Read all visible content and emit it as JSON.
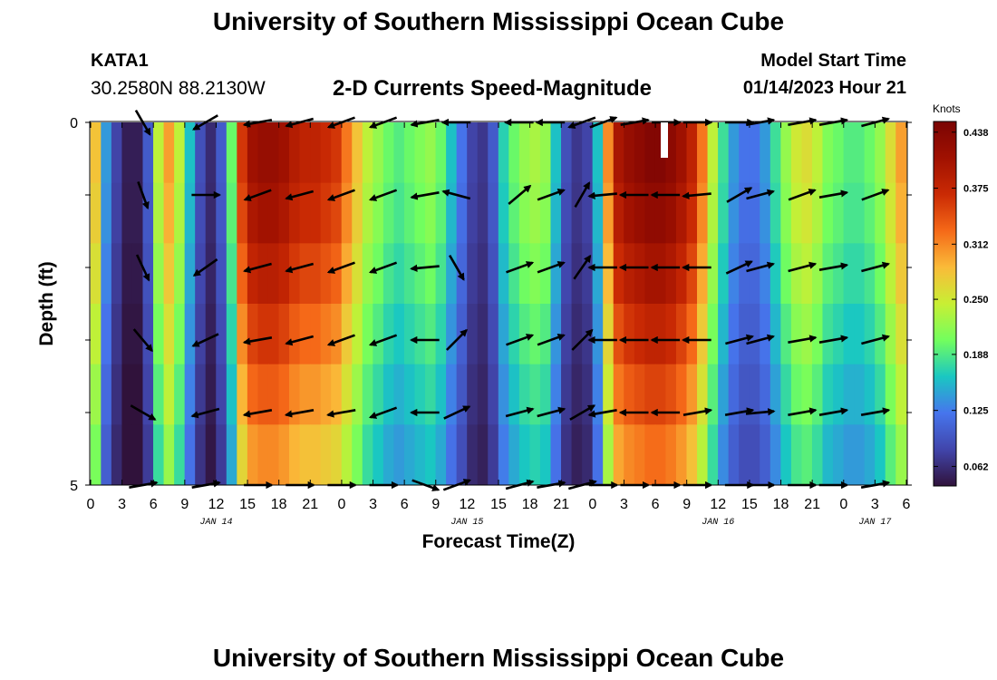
{
  "header": {
    "title": "University of Southern Mississippi Ocean Cube",
    "station": "KATA1",
    "coords": "30.2580N  88.2130W",
    "subtitle": "2-D Currents Speed-Magnitude",
    "model_start_label": "Model Start Time",
    "model_start_value": "01/14/2023 Hour 21"
  },
  "footer": {
    "title": "University of Southern Mississippi Ocean Cube"
  },
  "chart_data": {
    "type": "heatmap",
    "title": "2-D Currents Speed-Magnitude",
    "xlabel": "Forecast Time(Z)",
    "ylabel": "Depth (ft)",
    "colorbar_label": "Knots",
    "colorbar_ticks": [
      "0.438",
      "0.375",
      "0.312",
      "0.250",
      "0.188",
      "0.125",
      "0.062"
    ],
    "colorbar_range": [
      0.04,
      0.45
    ],
    "x_tick_labels": [
      "0",
      "3",
      "6",
      "9",
      "12",
      "15",
      "18",
      "21",
      "0",
      "3",
      "6",
      "9",
      "12",
      "15",
      "18",
      "21",
      "0",
      "3",
      "6",
      "9",
      "12",
      "15",
      "18",
      "21",
      "0",
      "3",
      "6"
    ],
    "date_labels": [
      {
        "text": "JAN 14",
        "hour": 12
      },
      {
        "text": "JAN 15",
        "hour": 36
      },
      {
        "text": "JAN 16",
        "hour": 60
      },
      {
        "text": "JAN 17",
        "hour": 75
      }
    ],
    "y_tick_labels": [
      {
        "text": "0",
        "depth": 0
      },
      {
        "text": "5",
        "depth": 5
      }
    ],
    "ylim": [
      0,
      5
    ],
    "xlim": [
      0,
      78
    ],
    "depth_levels": [
      0,
      1,
      2,
      3,
      4,
      5
    ],
    "speed_profile_by_hour": [
      0.28,
      0.14,
      0.08,
      0.05,
      0.05,
      0.1,
      0.24,
      0.3,
      0.24,
      0.16,
      0.09,
      0.06,
      0.1,
      0.2,
      0.36,
      0.41,
      0.42,
      0.42,
      0.41,
      0.39,
      0.38,
      0.38,
      0.37,
      0.36,
      0.32,
      0.28,
      0.24,
      0.22,
      0.2,
      0.19,
      0.2,
      0.21,
      0.22,
      0.2,
      0.16,
      0.12,
      0.08,
      0.07,
      0.1,
      0.17,
      0.2,
      0.22,
      0.23,
      0.22,
      0.16,
      0.09,
      0.07,
      0.08,
      0.16,
      0.31,
      0.4,
      0.42,
      0.43,
      0.44,
      0.44,
      0.43,
      0.41,
      0.38,
      0.32,
      0.24,
      0.18,
      0.14,
      0.12,
      0.12,
      0.14,
      0.18,
      0.22,
      0.25,
      0.26,
      0.24,
      0.21,
      0.2,
      0.19,
      0.19,
      0.2,
      0.22,
      0.26,
      0.3
    ],
    "depth_factor": [
      1.0,
      0.97,
      0.92,
      0.86,
      0.8,
      0.74
    ],
    "arrow_hours": [
      5,
      11,
      16,
      20,
      24,
      28,
      32,
      35,
      41,
      44,
      47,
      49,
      52,
      55,
      58,
      62,
      64,
      68,
      71,
      75
    ],
    "arrow_directions_deg": [
      [
        300,
        210,
        190,
        195,
        200,
        200,
        190,
        180,
        180,
        180,
        200,
        20,
        10,
        0,
        0,
        0,
        10,
        10,
        10,
        15
      ],
      [
        290,
        0,
        200,
        195,
        200,
        200,
        190,
        165,
        40,
        20,
        60,
        185,
        180,
        180,
        185,
        30,
        15,
        20,
        10,
        20
      ],
      [
        295,
        215,
        195,
        195,
        200,
        200,
        185,
        300,
        20,
        20,
        55,
        180,
        180,
        180,
        180,
        25,
        15,
        15,
        10,
        15
      ],
      [
        310,
        205,
        190,
        195,
        200,
        200,
        180,
        45,
        20,
        20,
        45,
        180,
        180,
        180,
        180,
        15,
        15,
        10,
        10,
        15
      ],
      [
        330,
        195,
        190,
        190,
        190,
        200,
        180,
        25,
        15,
        15,
        30,
        190,
        180,
        180,
        10,
        10,
        5,
        10,
        10,
        10
      ],
      [
        10,
        10,
        0,
        0,
        0,
        0,
        340,
        20,
        15,
        10,
        15,
        0,
        0,
        0,
        0,
        0,
        0,
        0,
        0,
        10
      ]
    ]
  }
}
